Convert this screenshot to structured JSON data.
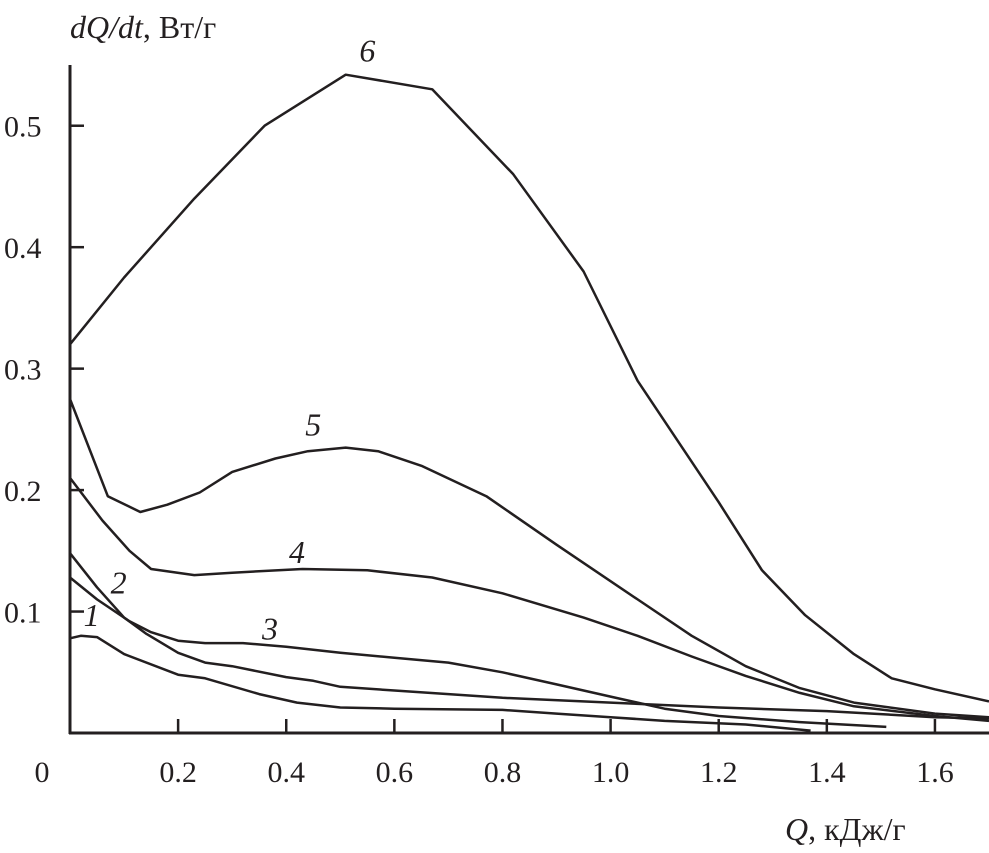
{
  "chart_data": {
    "type": "line",
    "ylabel_italic": "dQ/dt",
    "ylabel_unit": ", Вт/г",
    "xlabel_italic": "Q",
    "xlabel_unit": ", кДж/г",
    "xlim": [
      0,
      1.7
    ],
    "ylim": [
      0,
      0.55
    ],
    "grid": false,
    "line_color": "#231f20",
    "x_ticks": [
      {
        "value": 0,
        "label": "0"
      },
      {
        "value": 0.2,
        "label": "0.2"
      },
      {
        "value": 0.4,
        "label": "0.4"
      },
      {
        "value": 0.6,
        "label": "0.6"
      },
      {
        "value": 0.8,
        "label": "0.8"
      },
      {
        "value": 1.0,
        "label": "1.0"
      },
      {
        "value": 1.2,
        "label": "1.2"
      },
      {
        "value": 1.4,
        "label": "1.4"
      },
      {
        "value": 1.6,
        "label": "1.6"
      }
    ],
    "y_ticks": [
      {
        "value": 0.1,
        "label": "0.1"
      },
      {
        "value": 0.2,
        "label": "0.2"
      },
      {
        "value": 0.3,
        "label": "0.3"
      },
      {
        "value": 0.4,
        "label": "0.4"
      },
      {
        "value": 0.5,
        "label": "0.5"
      }
    ],
    "series": [
      {
        "name": "1",
        "label_at": [
          0.04,
          0.088
        ],
        "points": [
          [
            0,
            0.078
          ],
          [
            0.02,
            0.08
          ],
          [
            0.05,
            0.079
          ],
          [
            0.1,
            0.065
          ],
          [
            0.2,
            0.048
          ],
          [
            0.25,
            0.045
          ],
          [
            0.35,
            0.032
          ],
          [
            0.42,
            0.025
          ],
          [
            0.5,
            0.021
          ],
          [
            0.6,
            0.02
          ],
          [
            0.8,
            0.019
          ],
          [
            0.9,
            0.016
          ],
          [
            1.0,
            0.013
          ],
          [
            1.1,
            0.01
          ],
          [
            1.25,
            0.007
          ],
          [
            1.37,
            0.002
          ]
        ]
      },
      {
        "name": "2",
        "label_at": [
          0.09,
          0.115
        ],
        "points": [
          [
            0,
            0.148
          ],
          [
            0.05,
            0.12
          ],
          [
            0.1,
            0.095
          ],
          [
            0.14,
            0.082
          ],
          [
            0.2,
            0.066
          ],
          [
            0.25,
            0.058
          ],
          [
            0.3,
            0.055
          ],
          [
            0.4,
            0.046
          ],
          [
            0.45,
            0.043
          ],
          [
            0.5,
            0.038
          ],
          [
            0.6,
            0.035
          ],
          [
            0.8,
            0.029
          ],
          [
            1.0,
            0.025
          ],
          [
            1.2,
            0.021
          ],
          [
            1.4,
            0.018
          ],
          [
            1.6,
            0.013
          ],
          [
            1.7,
            0.012
          ]
        ]
      },
      {
        "name": "3",
        "label_at": [
          0.37,
          0.077
        ],
        "points": [
          [
            0,
            0.128
          ],
          [
            0.05,
            0.11
          ],
          [
            0.11,
            0.092
          ],
          [
            0.15,
            0.083
          ],
          [
            0.2,
            0.076
          ],
          [
            0.25,
            0.074
          ],
          [
            0.32,
            0.074
          ],
          [
            0.4,
            0.071
          ],
          [
            0.5,
            0.066
          ],
          [
            0.6,
            0.062
          ],
          [
            0.7,
            0.058
          ],
          [
            0.8,
            0.05
          ],
          [
            0.9,
            0.04
          ],
          [
            1.0,
            0.03
          ],
          [
            1.1,
            0.02
          ],
          [
            1.2,
            0.014
          ],
          [
            1.35,
            0.009
          ],
          [
            1.51,
            0.005
          ]
        ]
      },
      {
        "name": "4",
        "label_at": [
          0.42,
          0.14
        ],
        "points": [
          [
            0,
            0.21
          ],
          [
            0.06,
            0.175
          ],
          [
            0.11,
            0.15
          ],
          [
            0.15,
            0.135
          ],
          [
            0.23,
            0.13
          ],
          [
            0.3,
            0.132
          ],
          [
            0.43,
            0.135
          ],
          [
            0.55,
            0.134
          ],
          [
            0.67,
            0.128
          ],
          [
            0.8,
            0.115
          ],
          [
            0.95,
            0.095
          ],
          [
            1.05,
            0.08
          ],
          [
            1.15,
            0.063
          ],
          [
            1.25,
            0.047
          ],
          [
            1.35,
            0.033
          ],
          [
            1.45,
            0.022
          ],
          [
            1.6,
            0.014
          ],
          [
            1.7,
            0.01
          ]
        ]
      },
      {
        "name": "5",
        "label_at": [
          0.45,
          0.245
        ],
        "points": [
          [
            0,
            0.275
          ],
          [
            0.07,
            0.195
          ],
          [
            0.13,
            0.182
          ],
          [
            0.18,
            0.188
          ],
          [
            0.24,
            0.198
          ],
          [
            0.3,
            0.215
          ],
          [
            0.38,
            0.226
          ],
          [
            0.44,
            0.232
          ],
          [
            0.51,
            0.235
          ],
          [
            0.57,
            0.232
          ],
          [
            0.65,
            0.22
          ],
          [
            0.77,
            0.195
          ],
          [
            0.9,
            0.155
          ],
          [
            1.05,
            0.11
          ],
          [
            1.15,
            0.08
          ],
          [
            1.25,
            0.055
          ],
          [
            1.35,
            0.037
          ],
          [
            1.45,
            0.025
          ],
          [
            1.6,
            0.016
          ],
          [
            1.7,
            0.013
          ]
        ]
      },
      {
        "name": "6",
        "label_at": [
          0.55,
          0.553
        ],
        "points": [
          [
            0,
            0.32
          ],
          [
            0.1,
            0.375
          ],
          [
            0.23,
            0.44
          ],
          [
            0.36,
            0.5
          ],
          [
            0.51,
            0.542
          ],
          [
            0.67,
            0.53
          ],
          [
            0.82,
            0.46
          ],
          [
            0.95,
            0.38
          ],
          [
            1.05,
            0.29
          ],
          [
            1.2,
            0.19
          ],
          [
            1.28,
            0.134
          ],
          [
            1.36,
            0.097
          ],
          [
            1.45,
            0.065
          ],
          [
            1.52,
            0.045
          ],
          [
            1.6,
            0.036
          ],
          [
            1.7,
            0.026
          ]
        ]
      }
    ]
  }
}
